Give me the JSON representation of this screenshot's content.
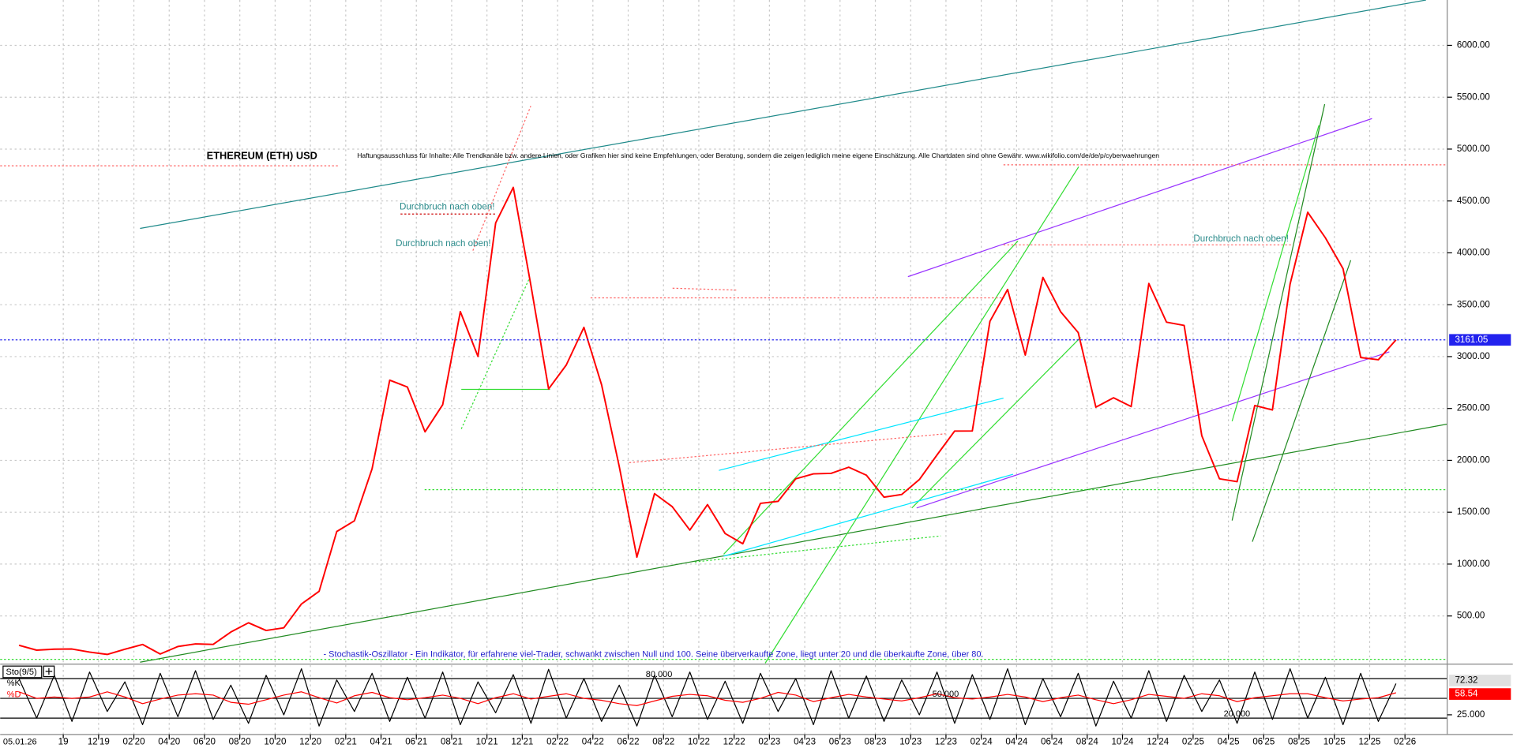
{
  "chart_data": [
    {
      "type": "line",
      "title": "ETHEREUM (ETH) USD",
      "subtitle": "Haftungsausschluss für Inhalte: Alle Trendkanäle bzw. andere Linien, oder Grafiken hier sind keine Empfehlungen, oder Beratung, sondern die zeigen lediglich meine eigene Einschätzung. Alle Chartdaten sind ohne Gewähr. www.wikifolio.com/de/de/p/cyberwaehrungen",
      "annotations": [
        "Durchbruch nach oben!",
        "Durchbruch nach oben!",
        "Durchbruch nach oben!",
        "- Stochastik-Oszillator - Ein Indikator, für erfahrene viel-Trader, schwankt zwischen Null und 100. Seine überverkaufte Zone, liegt unter 20 und die überkaufte Zone, über 80."
      ],
      "date_label": "05.01.26",
      "x": [
        "07'19",
        "08'19",
        "09'19",
        "10'19",
        "11'19",
        "12'19",
        "01'20",
        "02'20",
        "03'20",
        "04'20",
        "05'20",
        "06'20",
        "07'20",
        "08'20",
        "09'20",
        "10'20",
        "11'20",
        "12'20",
        "01'21",
        "02'21",
        "03'21",
        "04'21",
        "05'21",
        "06'21",
        "07'21",
        "08'21",
        "09'21",
        "10'21",
        "11'21",
        "12'21",
        "01'22",
        "02'22",
        "03'22",
        "04'22",
        "05'22",
        "06'22",
        "07'22",
        "08'22",
        "09'22",
        "10'22",
        "11'22",
        "12'22",
        "01'23",
        "02'23",
        "03'23",
        "04'23",
        "05'23",
        "06'23",
        "07'23",
        "08'23",
        "09'23",
        "10'23",
        "11'23",
        "12'23",
        "01'24",
        "02'24",
        "03'24",
        "04'24",
        "05'24",
        "06'24",
        "07'24",
        "08'24",
        "09'24",
        "10'24",
        "11'24",
        "12'24",
        "01'25",
        "02'25",
        "03'25",
        "04'25",
        "05'25",
        "06'25",
        "07'25",
        "08'25",
        "09'25",
        "10'25",
        "11'25",
        "12'25",
        "01'26"
      ],
      "series": [
        {
          "name": "ETH USD",
          "color": "#ff0000",
          "values": [
            218,
            170,
            180,
            182,
            152,
            130,
            180,
            225,
            133,
            206,
            231,
            226,
            345,
            434,
            360,
            386,
            615,
            737,
            1314,
            1417,
            1918,
            2773,
            2707,
            2275,
            2536,
            3433,
            3001,
            4288,
            4631,
            3683,
            2688,
            2919,
            3282,
            2729,
            1942,
            1067,
            1679,
            1554,
            1328,
            1573,
            1295,
            1196,
            1585,
            1605,
            1822,
            1870,
            1874,
            1934,
            1857,
            1645,
            1671,
            1815,
            2052,
            2282,
            2283,
            3340,
            3647,
            3014,
            3763,
            3433,
            3232,
            2513,
            2603,
            2518,
            3705,
            3332,
            3300,
            2237,
            1822,
            1794,
            2528,
            2486,
            3698,
            4391,
            4145,
            3848,
            2991,
            2970,
            3161.05
          ]
        }
      ],
      "last_price": 3161.05,
      "ylim": [
        45,
        6437
      ],
      "yticks": [
        {
          "value": 500,
          "label": "500.00"
        },
        {
          "value": 1000,
          "label": "1000.00"
        },
        {
          "value": 1500,
          "label": "1500.00"
        },
        {
          "value": 2000,
          "label": "2000.00"
        },
        {
          "value": 2500,
          "label": "2500.00"
        },
        {
          "value": 3000,
          "label": "3000.00"
        },
        {
          "value": 3500,
          "label": "3500.00"
        },
        {
          "value": 4000,
          "label": "4000.00"
        },
        {
          "value": 4500,
          "label": "4500.00"
        },
        {
          "value": 5000,
          "label": "5000.00"
        },
        {
          "value": 5500,
          "label": "5500.00"
        },
        {
          "value": 6000,
          "label": "6000.00"
        }
      ],
      "xticks": [
        {
          "value": "10'19",
          "label": "19"
        },
        "12'19",
        "02'20",
        "04'20",
        "06'20",
        "08'20",
        "10'20",
        "12'20",
        "02'21",
        "04'21",
        "06'21",
        "08'21",
        "10'21",
        "12'21",
        "02'22",
        "04'22",
        "06'22",
        "08'22",
        "10'22",
        "12'22",
        "02'23",
        "04'23",
        "06'23",
        "08'23",
        "10'23",
        "12'23",
        "02'24",
        "04'24",
        "06'24",
        "08'24",
        "10'24",
        "12'24",
        "02'25",
        "04'25",
        "06'25",
        "08'25",
        "10'25",
        "12'25",
        "02'26"
      ],
      "grid": true
    },
    {
      "type": "line",
      "title": "Sto(9/5)",
      "x": [
        "07'19",
        "08'19",
        "09'19",
        "10'19",
        "11'19",
        "12'19",
        "01'20",
        "02'20",
        "03'20",
        "04'20",
        "05'20",
        "06'20",
        "07'20",
        "08'20",
        "09'20",
        "10'20",
        "11'20",
        "12'20",
        "01'21",
        "02'21",
        "03'21",
        "04'21",
        "05'21",
        "06'21",
        "07'21",
        "08'21",
        "09'21",
        "10'21",
        "11'21",
        "12'21",
        "01'22",
        "02'22",
        "03'22",
        "04'22",
        "05'22",
        "06'22",
        "07'22",
        "08'22",
        "09'22",
        "10'22",
        "11'22",
        "12'22",
        "01'23",
        "02'23",
        "03'23",
        "04'23",
        "05'23",
        "06'23",
        "07'23",
        "08'23",
        "09'23",
        "10'23",
        "11'23",
        "12'23",
        "01'24",
        "02'24",
        "03'24",
        "04'24",
        "05'24",
        "06'24",
        "07'24",
        "08'24",
        "09'24",
        "10'24",
        "11'24",
        "12'24",
        "01'25",
        "02'25",
        "03'25",
        "04'25",
        "05'25",
        "06'25",
        "07'25",
        "08'25",
        "09'25",
        "10'25",
        "11'25",
        "12'25",
        "01'26"
      ],
      "series": [
        {
          "name": "%K",
          "color": "#000000",
          "values": [
            80,
            20,
            85,
            15,
            90,
            30,
            75,
            10,
            88,
            22,
            92,
            18,
            70,
            12,
            85,
            25,
            95,
            8,
            78,
            30,
            88,
            15,
            82,
            20,
            90,
            10,
            75,
            28,
            86,
            12,
            94,
            20,
            80,
            15,
            70,
            8,
            85,
            22,
            90,
            18,
            76,
            12,
            88,
            30,
            80,
            10,
            92,
            20,
            84,
            15,
            78,
            25,
            90,
            12,
            86,
            18,
            95,
            10,
            80,
            22,
            88,
            8,
            76,
            20,
            92,
            15,
            85,
            30,
            78,
            12,
            90,
            18,
            95,
            20,
            82,
            10,
            88,
            15,
            72.32
          ]
        },
        {
          "name": "%D",
          "color": "#ff0000",
          "values": [
            60,
            50,
            52,
            50,
            52,
            60,
            52,
            42,
            49,
            55,
            57,
            55,
            44,
            41,
            48,
            55,
            60,
            51,
            43,
            54,
            59,
            51,
            48,
            51,
            55,
            50,
            42,
            51,
            57,
            49,
            53,
            57,
            50,
            47,
            42,
            39,
            46,
            53,
            56,
            54,
            47,
            44,
            50,
            59,
            55,
            45,
            51,
            56,
            52,
            49,
            46,
            51,
            57,
            51,
            49,
            52,
            56,
            52,
            45,
            51,
            55,
            48,
            42,
            48,
            56,
            53,
            50,
            57,
            54,
            45,
            51,
            54,
            57,
            57,
            51,
            46,
            49,
            51,
            58.54
          ]
        }
      ],
      "levels": [
        {
          "value": 80,
          "label": "80.000"
        },
        {
          "value": 50,
          "label": "50.000"
        },
        {
          "value": 20,
          "label": "20.000"
        }
      ],
      "yticks": [
        {
          "value": 25,
          "label": "25.000"
        }
      ],
      "ylim": [
        -2,
        100.5
      ]
    }
  ]
}
